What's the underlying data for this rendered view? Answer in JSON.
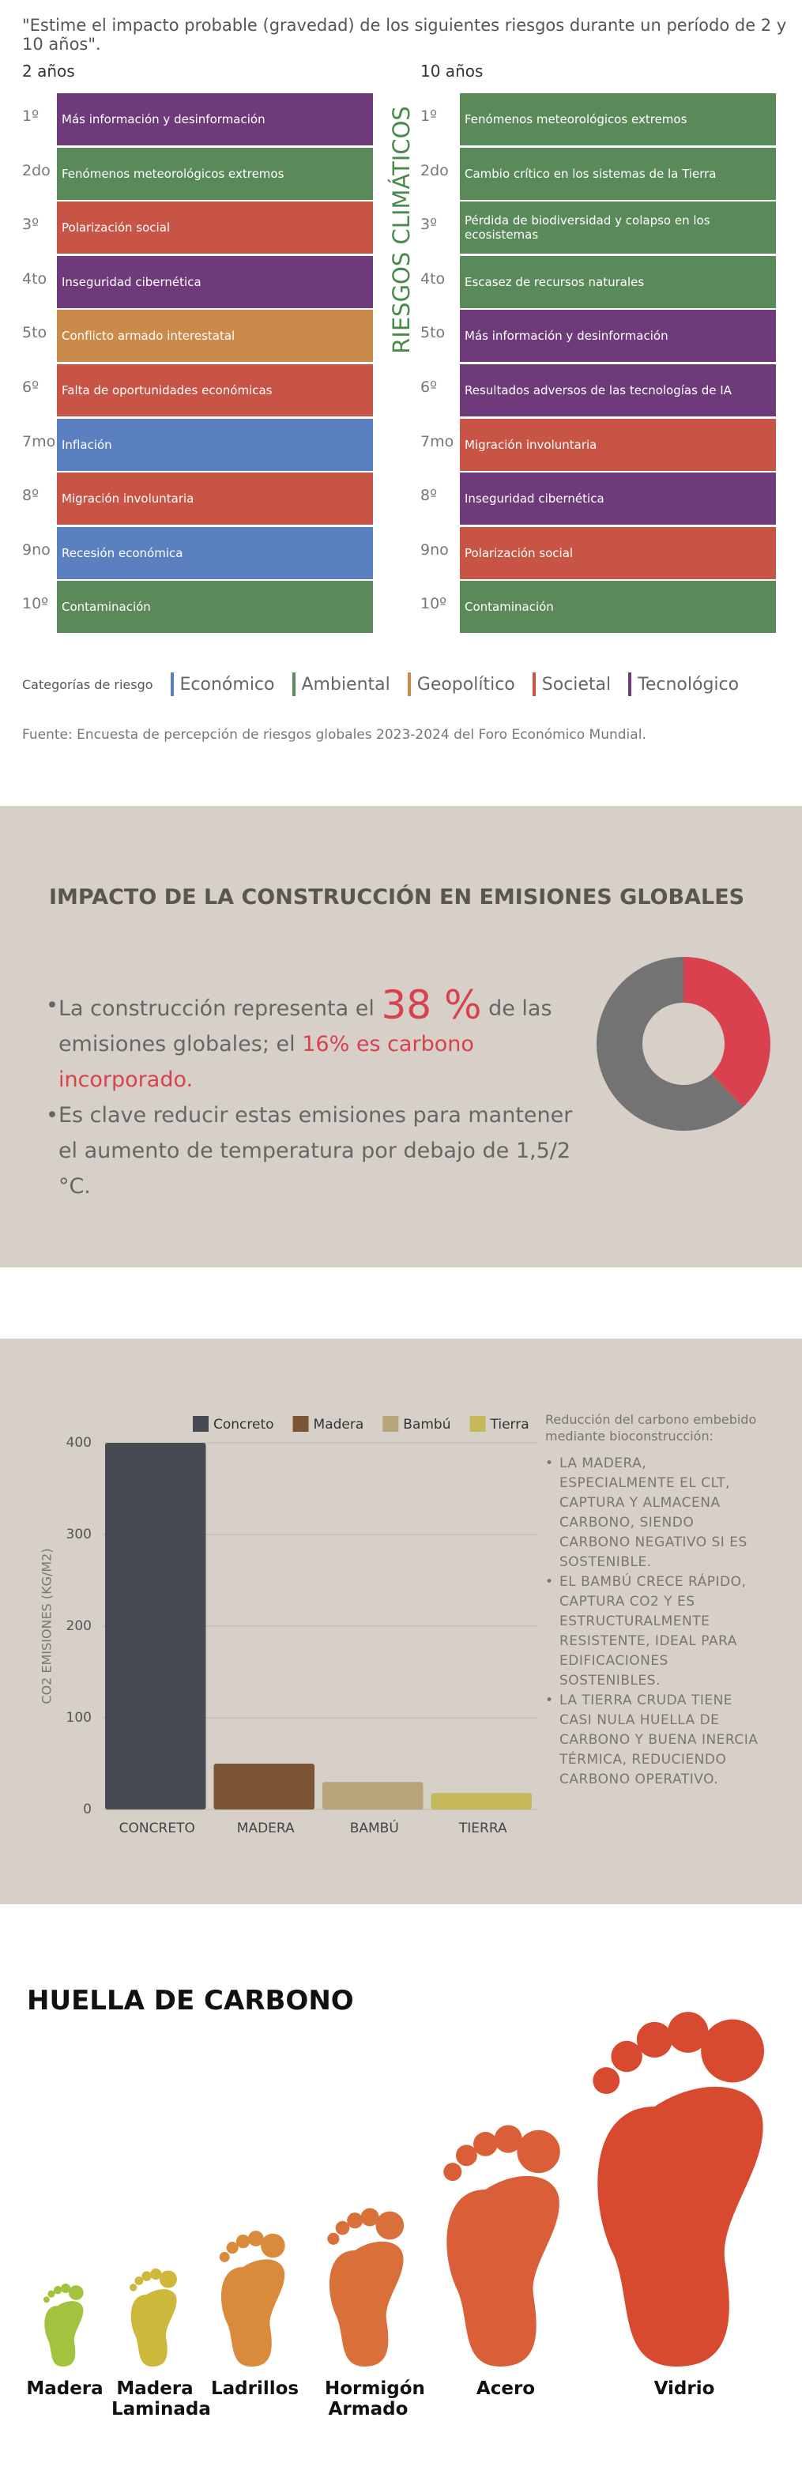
{
  "risks": {
    "question": "\"Estime el impacto probable (gravedad) de los siguientes riesgos durante un período de 2 y 10 años\".",
    "vertical_label": "RIESGOS CLIMÁTICOS",
    "columns": [
      {
        "label": "2 años",
        "items": [
          {
            "rank": "1º",
            "risk": "Más información y desinformación",
            "category": "Tecnológico"
          },
          {
            "rank": "2do",
            "risk": "Fenómenos meteorológicos extremos",
            "category": "Ambiental"
          },
          {
            "rank": "3º",
            "risk": "Polarización social",
            "category": "Societal"
          },
          {
            "rank": "4to",
            "risk": "Inseguridad cibernética",
            "category": "Tecnológico"
          },
          {
            "rank": "5to",
            "risk": "Conflicto armado interestatal",
            "category": "Geopolítico"
          },
          {
            "rank": "6º",
            "risk": "Falta de oportunidades económicas",
            "category": "Societal"
          },
          {
            "rank": "7mo",
            "risk": "Inflación",
            "category": "Económico"
          },
          {
            "rank": "8º",
            "risk": "Migración involuntaria",
            "category": "Societal"
          },
          {
            "rank": "9no",
            "risk": "Recesión económica",
            "category": "Económico"
          },
          {
            "rank": "10º",
            "risk": "Contaminación",
            "category": "Ambiental"
          }
        ]
      },
      {
        "label": "10 años",
        "items": [
          {
            "rank": "1º",
            "risk": "Fenómenos meteorológicos extremos",
            "category": "Ambiental"
          },
          {
            "rank": "2do",
            "risk": "Cambio crítico en los sistemas de la Tierra",
            "category": "Ambiental"
          },
          {
            "rank": "3º",
            "risk": "Pérdida de biodiversidad y colapso en los ecosistemas",
            "category": "Ambiental"
          },
          {
            "rank": "4to",
            "risk": "Escasez de recursos naturales",
            "category": "Ambiental"
          },
          {
            "rank": "5to",
            "risk": "Más información y desinformación",
            "category": "Tecnológico"
          },
          {
            "rank": "6º",
            "risk": "Resultados adversos de las tecnologías de IA",
            "category": "Tecnológico"
          },
          {
            "rank": "7mo",
            "risk": "Migración involuntaria",
            "category": "Societal"
          },
          {
            "rank": "8º",
            "risk": "Inseguridad cibernética",
            "category": "Tecnológico"
          },
          {
            "rank": "9no",
            "risk": "Polarización social",
            "category": "Societal"
          },
          {
            "rank": "10º",
            "risk": "Contaminación",
            "category": "Ambiental"
          }
        ]
      }
    ],
    "legend_title": "Categorías de riesgo",
    "legend": [
      {
        "name": "Económico",
        "color": "#5b80c0"
      },
      {
        "name": "Ambiental",
        "color": "#5a8a5a"
      },
      {
        "name": "Geopolítico",
        "color": "#c98a4a"
      },
      {
        "name": "Societal",
        "color": "#c85445"
      },
      {
        "name": "Tecnológico",
        "color": "#6e3a7a"
      }
    ],
    "source": "Fuente: Encuesta de percepción de riesgos globales 2023-2024 del Foro Económico Mundial."
  },
  "emissions": {
    "title": "IMPACTO DE LA CONSTRUCCIÓN EN EMISIONES GLOBALES",
    "bullets": [
      [
        "La construcción representa el",
        "38 %",
        "de las emisiones globales; el",
        "16% es carbono incorporado."
      ],
      [
        "Es clave reducir estas emisiones para mantener el aumento de temperatura por debajo de 1,5/2 °C."
      ]
    ]
  },
  "chart_data": [
    {
      "type": "pie",
      "donut": true,
      "categories": [
        null,
        null
      ],
      "values": [
        38,
        62
      ],
      "colors": [
        "#d9414e",
        "#737373"
      ]
    },
    {
      "type": "bar",
      "ylabel": "CO2 EMISIONES (KG/M2)",
      "categories": [
        "CONCRETO",
        "MADERA",
        "BAMBÚ",
        "TIERRA"
      ],
      "series": [
        {
          "name": "Concreto",
          "color": "#474a52",
          "values": [
            400,
            null,
            null,
            null
          ]
        },
        {
          "name": "Madera",
          "color": "#7b5535",
          "values": [
            null,
            50,
            null,
            null
          ]
        },
        {
          "name": "Bambú",
          "color": "#b8a47a",
          "values": [
            null,
            null,
            30,
            null
          ]
        },
        {
          "name": "Tierra",
          "color": "#c4b85a",
          "values": [
            null,
            null,
            null,
            18
          ]
        }
      ],
      "ylim": [
        0,
        400
      ],
      "yticks": [
        0,
        100,
        200,
        300,
        400
      ],
      "grid": true,
      "legend": "top"
    }
  ],
  "bar_notes": {
    "title": "Reducción del carbono embebido mediante bioconstrucción:",
    "items": [
      "LA MADERA, ESPECIALMENTE EL CLT, CAPTURA Y ALMACENA CARBONO, SIENDO CARBONO NEGATIVO SI ES SOSTENIBLE.",
      "EL BAMBÚ CRECE RÁPIDO, CAPTURA CO2 Y ES ESTRUCTURALMENTE RESISTENTE, IDEAL PARA EDIFICACIONES SOSTENIBLES.",
      "LA TIERRA CRUDA TIENE CASI NULA HUELLA DE CARBONO Y BUENA INERCIA TÉRMICA, REDUCIENDO CARBONO OPERATIVO."
    ]
  },
  "footprint": {
    "title": "HUELLA DE CARBONO",
    "items": [
      {
        "label": "Madera",
        "color": "#a3c23e"
      },
      {
        "label": "Madera Laminada",
        "color": "#cdb83c"
      },
      {
        "label": "Ladrillos",
        "color": "#d98a3a"
      },
      {
        "label": "Hormigón Armado",
        "color": "#d9703a"
      },
      {
        "label": "Acero",
        "color": "#da5f38"
      },
      {
        "label": "Vidrio",
        "color": "#d84a30"
      }
    ]
  }
}
